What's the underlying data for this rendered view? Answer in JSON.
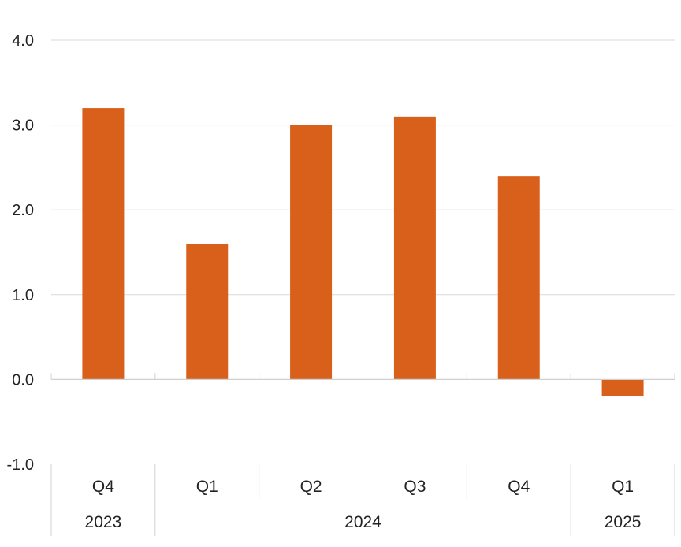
{
  "chart_data": {
    "type": "bar",
    "categories": [
      "Q4",
      "Q1",
      "Q2",
      "Q3",
      "Q4",
      "Q1"
    ],
    "groups": [
      {
        "label": "2023",
        "span": 1
      },
      {
        "label": "2024",
        "span": 4
      },
      {
        "label": "2025",
        "span": 1
      }
    ],
    "values": [
      3.2,
      1.6,
      3.0,
      3.1,
      2.4,
      -0.2
    ],
    "ylim": [
      -1.0,
      4.0
    ],
    "yticks": [
      "4.0",
      "3.0",
      "2.0",
      "1.0",
      "0.0",
      "-1.0"
    ],
    "grid": true,
    "bar_color": "#d9601a",
    "title": "",
    "xlabel": "",
    "ylabel": ""
  }
}
